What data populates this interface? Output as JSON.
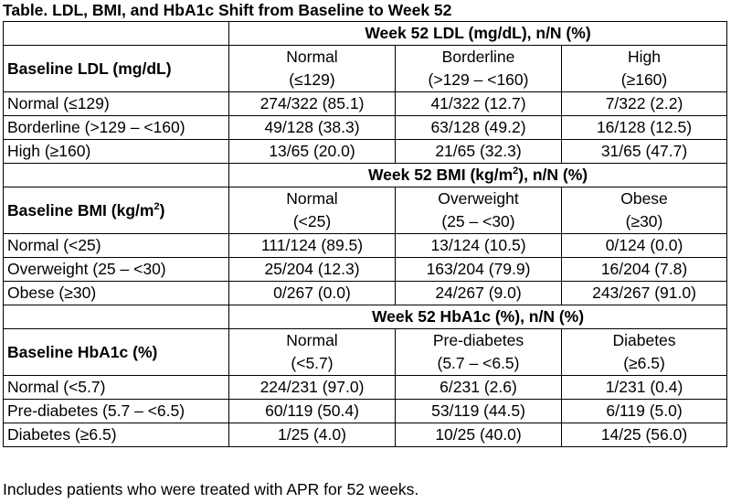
{
  "title": "Table. LDL, BMI, and HbA1c Shift from Baseline to Week 52",
  "sections": [
    {
      "group_header_pre": "Week 52 LDL (mg/dL), n/N (%)",
      "group_header_sup": "",
      "group_header_post": "",
      "baseline_label_pre": "Baseline LDL (mg/dL)",
      "baseline_label_sup": "",
      "baseline_label_post": "",
      "categories": [
        {
          "name": "Normal",
          "range": "(≤129)"
        },
        {
          "name": "Borderline",
          "range": "(>129 – <160)"
        },
        {
          "name": "High",
          "range": "(≥160)"
        }
      ],
      "rows": [
        {
          "label": "Normal (≤129)",
          "cells": [
            "274/322 (85.1)",
            "41/322 (12.7)",
            "7/322 (2.2)"
          ]
        },
        {
          "label": "Borderline (>129 – <160)",
          "cells": [
            "49/128 (38.3)",
            "63/128 (49.2)",
            "16/128 (12.5)"
          ]
        },
        {
          "label": "High (≥160)",
          "cells": [
            "13/65 (20.0)",
            "21/65 (32.3)",
            "31/65 (47.7)"
          ]
        }
      ]
    },
    {
      "group_header_pre": "Week 52 BMI (kg/m",
      "group_header_sup": "2",
      "group_header_post": "), n/N (%)",
      "baseline_label_pre": "Baseline BMI (kg/m",
      "baseline_label_sup": "2",
      "baseline_label_post": ")",
      "categories": [
        {
          "name": "Normal",
          "range": "(<25)"
        },
        {
          "name": "Overweight",
          "range": "(25 – <30)"
        },
        {
          "name": "Obese",
          "range": "(≥30)"
        }
      ],
      "rows": [
        {
          "label": "Normal (<25)",
          "cells": [
            "111/124 (89.5)",
            "13/124 (10.5)",
            "0/124 (0.0)"
          ]
        },
        {
          "label": "Overweight (25 – <30)",
          "cells": [
            "25/204 (12.3)",
            "163/204 (79.9)",
            "16/204 (7.8)"
          ]
        },
        {
          "label": "Obese (≥30)",
          "cells": [
            "0/267 (0.0)",
            "24/267 (9.0)",
            "243/267 (91.0)"
          ]
        }
      ]
    },
    {
      "group_header_pre": "Week 52 HbA1c (%), n/N (%)",
      "group_header_sup": "",
      "group_header_post": "",
      "baseline_label_pre": "Baseline HbA1c (%)",
      "baseline_label_sup": "",
      "baseline_label_post": "",
      "categories": [
        {
          "name": "Normal",
          "range": "(<5.7)"
        },
        {
          "name": "Pre-diabetes",
          "range": "(5.7 – <6.5)"
        },
        {
          "name": "Diabetes",
          "range": "(≥6.5)"
        }
      ],
      "rows": [
        {
          "label": "Normal (<5.7)",
          "cells": [
            "224/231 (97.0)",
            "6/231 (2.6)",
            "1/231 (0.4)"
          ]
        },
        {
          "label": "Pre-diabetes (5.7 – <6.5)",
          "cells": [
            "60/119 (50.4)",
            "53/119 (44.5)",
            "6/119 (5.0)"
          ]
        },
        {
          "label": "Diabetes (≥6.5)",
          "cells": [
            "1/25 (4.0)",
            "10/25 (40.0)",
            "14/25 (56.0)"
          ]
        }
      ]
    }
  ],
  "footnote": "Includes patients who were treated with APR for 52 weeks."
}
